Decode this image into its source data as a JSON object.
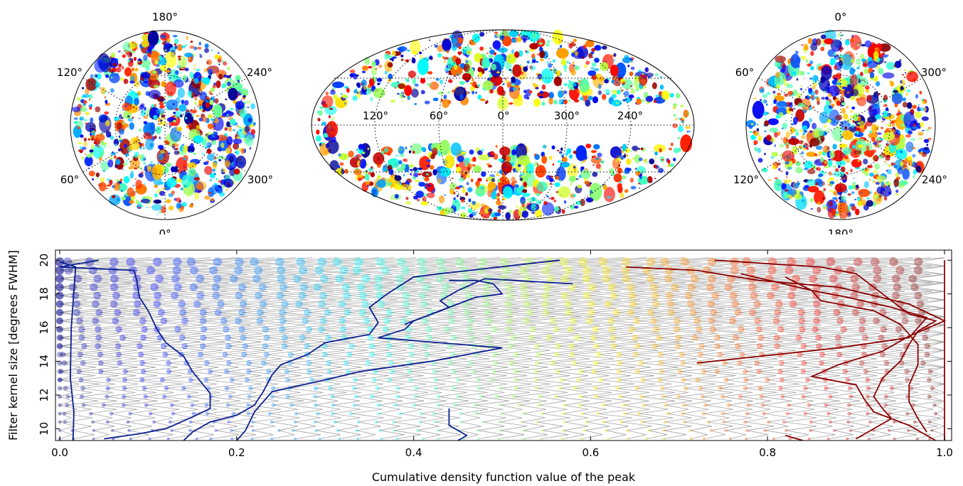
{
  "projections": {
    "left": {
      "top": "180°",
      "bottom": "0°",
      "upper_left": "120°",
      "upper_right": "240°",
      "lower_left": "60°",
      "lower_right": "300°"
    },
    "middle": {
      "labels": [
        "120°",
        "60°",
        "0°",
        "300°",
        "240°"
      ]
    },
    "right": {
      "top": "0°",
      "bottom": "180°",
      "upper_left": "60°",
      "upper_right": "300°",
      "lower_left": "120°",
      "lower_right": "240°"
    }
  },
  "chart_data": {
    "type": "scatter",
    "xlabel": "Cumulative density function value of the peak",
    "ylabel": "Filter kernel size [degrees FWHM]",
    "xlim": [
      0.0,
      1.0
    ],
    "ylim": [
      9.3,
      20.6
    ],
    "xticks": [
      "0.0",
      "0.2",
      "0.4",
      "0.6",
      "0.8",
      "1.0"
    ],
    "xtick_values": [
      0.0,
      0.2,
      0.4,
      0.6,
      0.8,
      1.0
    ],
    "yticks": [
      "20",
      "18",
      "16",
      "14",
      "12",
      "10"
    ],
    "ytick_values": [
      20,
      18,
      16,
      14,
      12,
      10
    ],
    "colormap": "jet",
    "highlighted_series": [
      {
        "color": "#0a1f8f",
        "points": [
          [
            0.044,
            20.0
          ],
          [
            0.0,
            19.6
          ],
          [
            0.084,
            19.4
          ],
          [
            0.087,
            18.8
          ],
          [
            0.09,
            17.8
          ],
          [
            0.1,
            17.0
          ],
          [
            0.11,
            15.9
          ],
          [
            0.12,
            15.1
          ],
          [
            0.14,
            14.3
          ],
          [
            0.15,
            13.4
          ],
          [
            0.17,
            12.1
          ],
          [
            0.17,
            11.2
          ],
          [
            0.15,
            10.7
          ],
          [
            0.12,
            10.0
          ],
          [
            0.09,
            9.7
          ],
          [
            0.05,
            9.4
          ]
        ]
      },
      {
        "color": "#0a1f8f",
        "points": [
          [
            0.0,
            19.9
          ],
          [
            0.018,
            19.6
          ],
          [
            0.013,
            16.0
          ],
          [
            0.012,
            13.0
          ],
          [
            0.016,
            11.0
          ],
          [
            0.015,
            9.3
          ]
        ]
      },
      {
        "color": "#0a1f8f",
        "points": [
          [
            0.565,
            20.0
          ],
          [
            0.43,
            19.2
          ],
          [
            0.4,
            19.0
          ],
          [
            0.37,
            18.0
          ],
          [
            0.35,
            17.2
          ],
          [
            0.36,
            16.3
          ],
          [
            0.35,
            15.6
          ],
          [
            0.3,
            15.1
          ],
          [
            0.28,
            14.4
          ],
          [
            0.25,
            13.8
          ],
          [
            0.24,
            13.2
          ],
          [
            0.23,
            12.2
          ],
          [
            0.22,
            11.4
          ],
          [
            0.2,
            10.8
          ],
          [
            0.17,
            10.4
          ],
          [
            0.15,
            9.8
          ],
          [
            0.14,
            9.3
          ]
        ]
      },
      {
        "color": "#0a1f8f",
        "points": [
          [
            0.44,
            18.8
          ],
          [
            0.47,
            18.8
          ],
          [
            0.49,
            18.6
          ],
          [
            0.5,
            18.0
          ],
          [
            0.47,
            17.8
          ],
          [
            0.44,
            17.2
          ],
          [
            0.4,
            16.4
          ],
          [
            0.39,
            15.9
          ],
          [
            0.36,
            15.4
          ],
          [
            0.5,
            14.8
          ],
          [
            0.42,
            14.0
          ],
          [
            0.34,
            13.4
          ],
          [
            0.3,
            12.9
          ],
          [
            0.24,
            12.2
          ],
          [
            0.22,
            11.0
          ],
          [
            0.21,
            9.9
          ],
          [
            0.2,
            9.3
          ]
        ]
      },
      {
        "color": "#0a1f8f",
        "points": [
          [
            0.58,
            18.6
          ],
          [
            0.48,
            18.9
          ],
          [
            0.45,
            18.2
          ],
          [
            0.43,
            17.6
          ],
          [
            0.44,
            17.2
          ],
          [
            0.4,
            16.4
          ],
          [
            0.39,
            16.2
          ]
        ]
      },
      {
        "color": "#0a1f8f",
        "points": [
          [
            0.44,
            11.2
          ],
          [
            0.44,
            10.2
          ],
          [
            0.46,
            9.6
          ],
          [
            0.45,
            9.3
          ]
        ]
      },
      {
        "color": "#8b0000",
        "points": [
          [
            0.74,
            20.0
          ],
          [
            0.8,
            19.8
          ],
          [
            0.86,
            19.6
          ],
          [
            0.9,
            19.2
          ],
          [
            0.94,
            17.6
          ],
          [
            0.96,
            16.8
          ],
          [
            0.99,
            16.4
          ],
          [
            0.97,
            15.8
          ],
          [
            0.96,
            15.0
          ],
          [
            0.95,
            14.0
          ],
          [
            0.93,
            13.0
          ],
          [
            0.92,
            11.9
          ],
          [
            0.93,
            11.2
          ],
          [
            0.94,
            10.6
          ],
          [
            0.92,
            10.0
          ],
          [
            0.9,
            9.4
          ]
        ]
      },
      {
        "color": "#8b0000",
        "points": [
          [
            0.64,
            19.6
          ],
          [
            0.72,
            19.4
          ],
          [
            0.79,
            18.8
          ],
          [
            0.88,
            18.4
          ],
          [
            0.96,
            17.4
          ],
          [
            1.0,
            16.4
          ],
          [
            0.96,
            15.5
          ],
          [
            0.93,
            14.6
          ],
          [
            0.88,
            13.8
          ],
          [
            0.85,
            13.1
          ],
          [
            0.9,
            12.6
          ],
          [
            0.91,
            11.7
          ],
          [
            0.92,
            11.0
          ],
          [
            0.96,
            10.2
          ],
          [
            0.98,
            9.6
          ],
          [
            0.99,
            9.3
          ]
        ]
      },
      {
        "color": "#8b0000",
        "points": [
          [
            0.77,
            19.2
          ],
          [
            0.85,
            18.2
          ],
          [
            0.89,
            17.8
          ],
          [
            0.94,
            17.2
          ],
          [
            0.98,
            16.6
          ],
          [
            0.96,
            15.4
          ],
          [
            0.88,
            14.8
          ],
          [
            0.72,
            13.9
          ]
        ]
      },
      {
        "color": "#8b0000",
        "points": [
          [
            0.82,
            19.0
          ],
          [
            0.85,
            18.2
          ],
          [
            0.86,
            17.6
          ],
          [
            0.92,
            17.0
          ],
          [
            0.95,
            16.2
          ],
          [
            0.97,
            15.0
          ],
          [
            0.97,
            13.8
          ],
          [
            0.96,
            12.6
          ],
          [
            0.96,
            11.6
          ],
          [
            0.97,
            10.6
          ],
          [
            0.98,
            9.8
          ]
        ]
      },
      {
        "color": "#8b0000",
        "points": [
          [
            0.82,
            9.6
          ],
          [
            0.84,
            9.3
          ]
        ]
      },
      {
        "color": "#8b0000",
        "points": [
          [
            1.0,
            20.0
          ],
          [
            1.0,
            9.3
          ]
        ]
      }
    ]
  }
}
